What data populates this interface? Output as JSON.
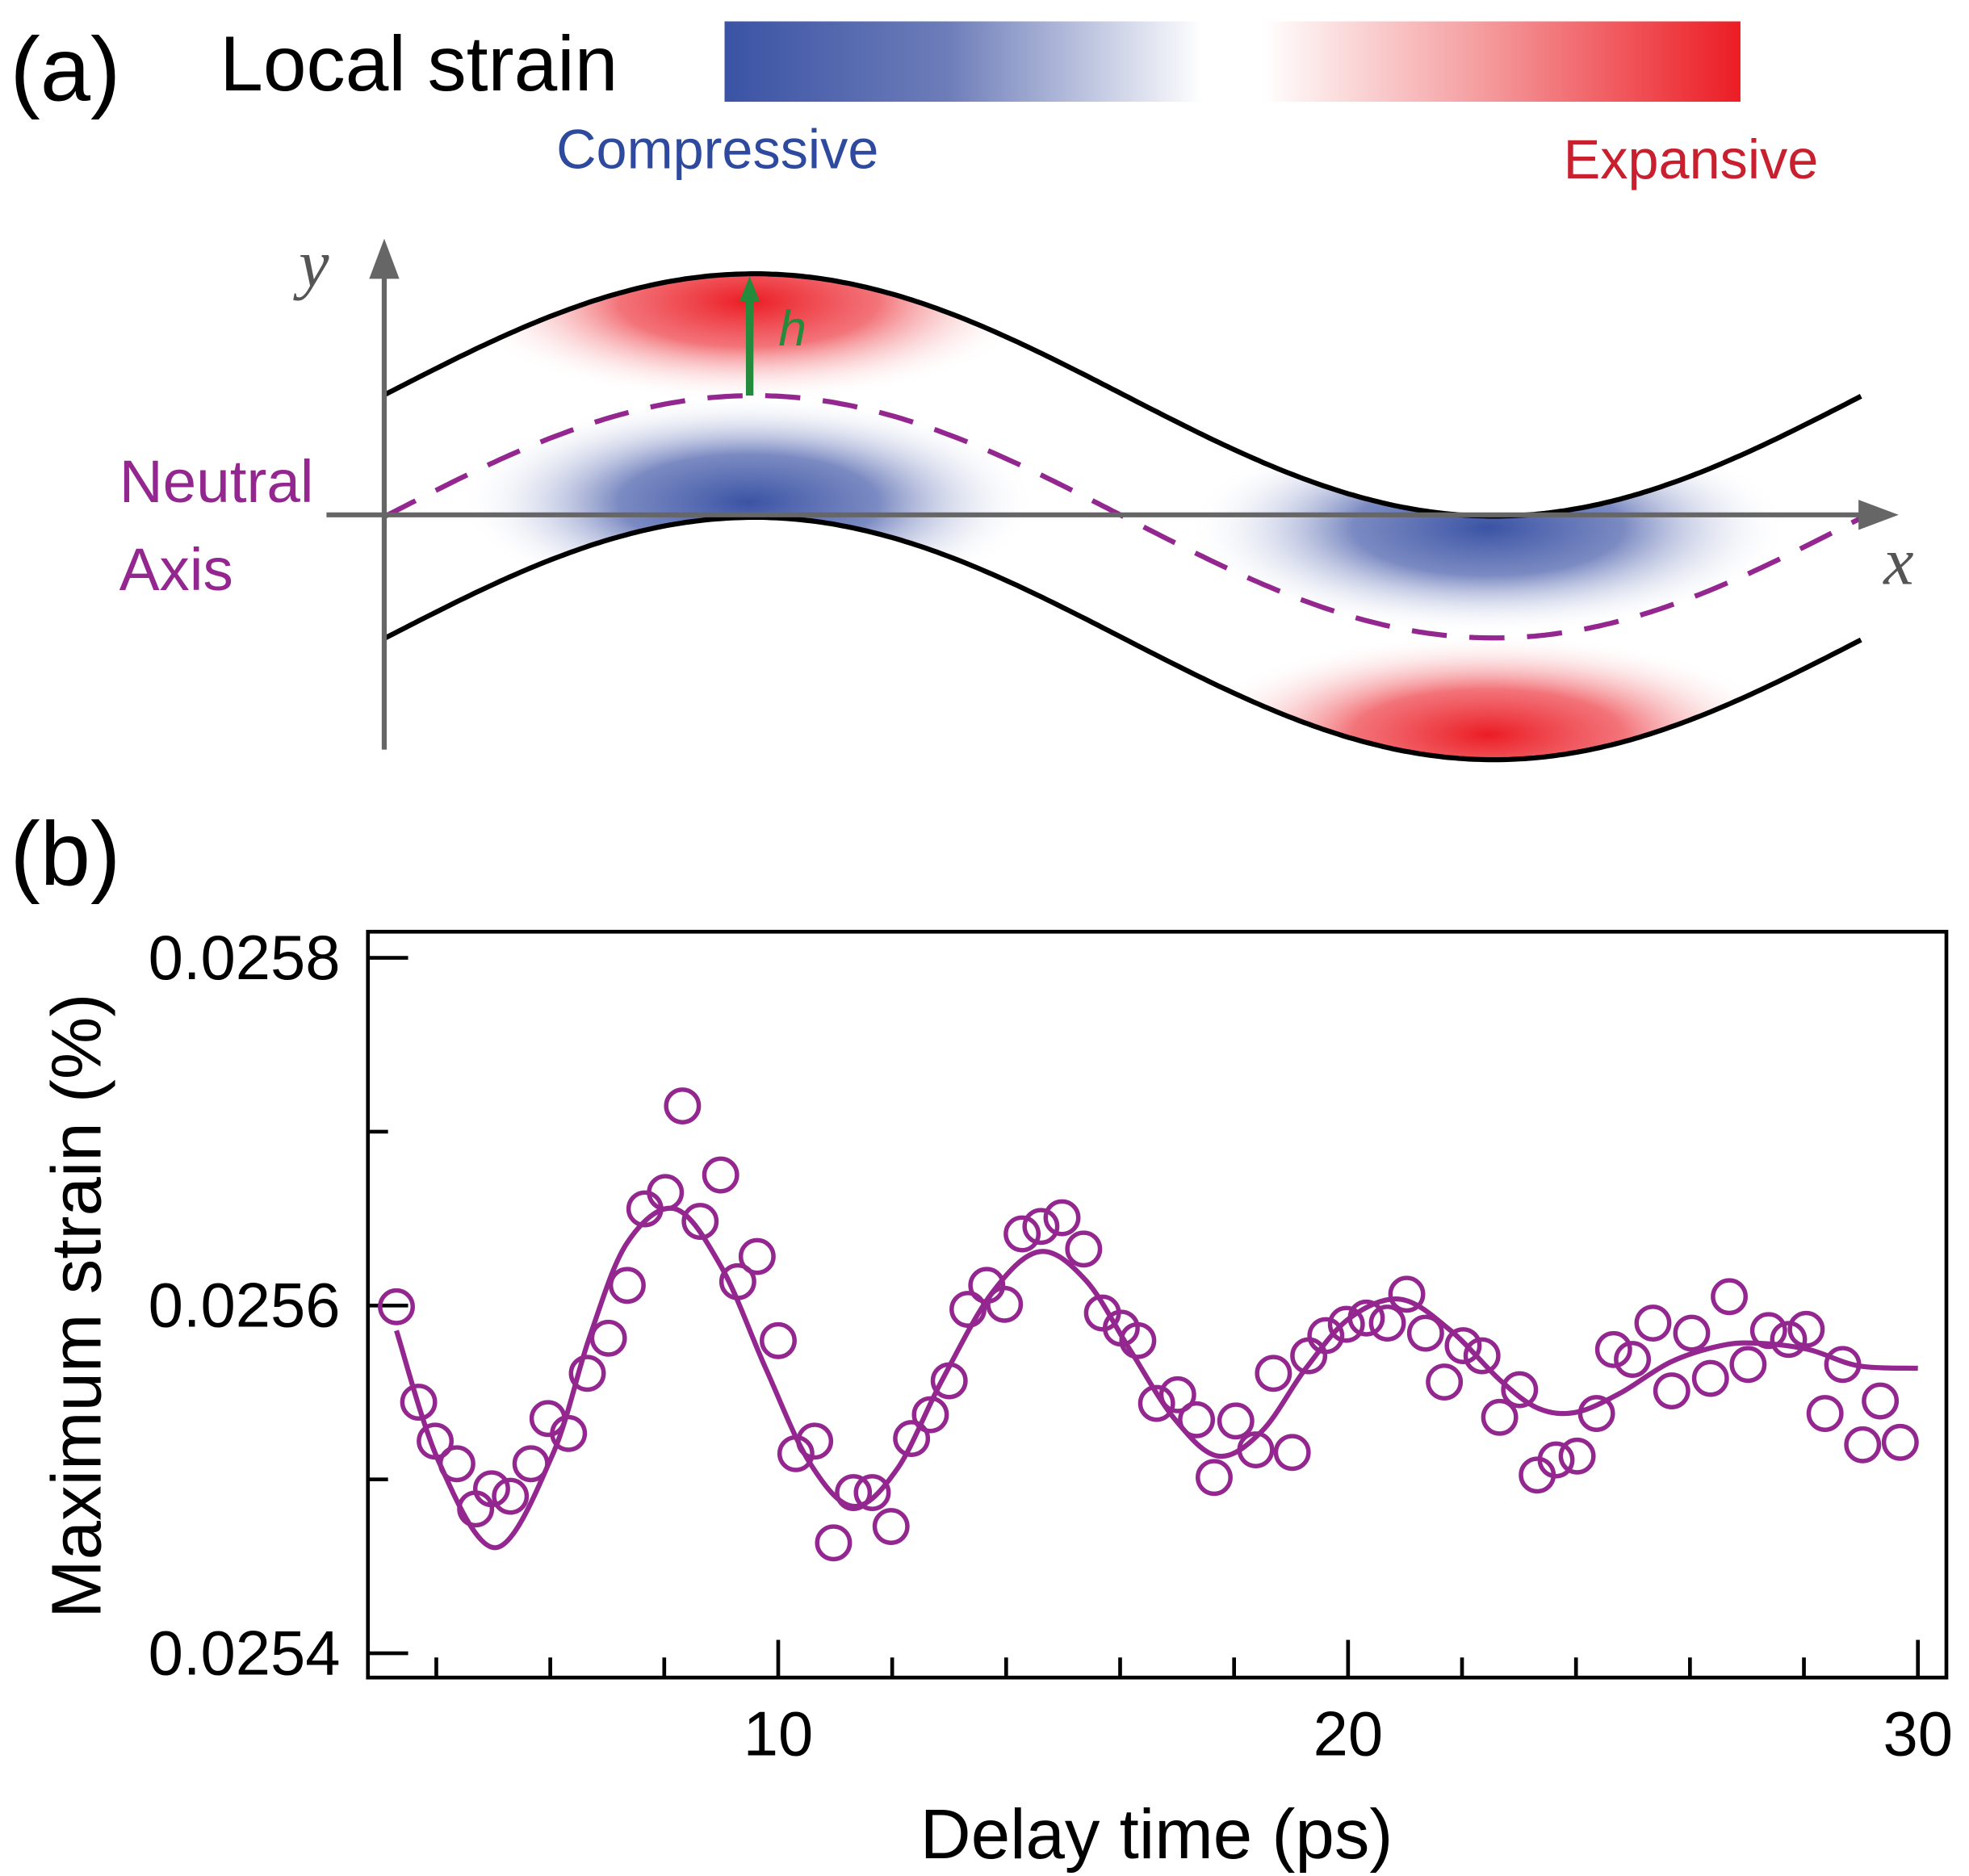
{
  "diagram": {
    "panel_label": "(a)",
    "colorbar_label": "Local strain",
    "low_label": "Compressive",
    "high_label": "Expansive",
    "y_axis": "y",
    "x_axis": "x",
    "thickness": "h",
    "neutral_axis": [
      "Neutral",
      "Axis"
    ]
  },
  "chart_data": {
    "type": "scatter",
    "panel_label": "(b)",
    "xlabel": "Delay time (ps)",
    "ylabel": "Maximum strain (%)",
    "xlim": [
      2.8,
      30.5
    ],
    "ylim": [
      0.025386,
      0.025815
    ],
    "xticks": [
      10,
      20,
      30
    ],
    "xminor_ticks": [
      4,
      6,
      8,
      12,
      14,
      16,
      18,
      22,
      24,
      26,
      28
    ],
    "yticks": [
      0.0254,
      0.0256,
      0.0258
    ],
    "yminor_ticks": [
      0.0255,
      0.0257
    ],
    "series": [
      {
        "type": "scatter",
        "color": "#93278f",
        "x": [
          3.3,
          3.69,
          3.98,
          4.36,
          4.69,
          4.97,
          5.3,
          5.66,
          5.96,
          6.32,
          6.65,
          7.02,
          7.35,
          7.66,
          8.02,
          8.32,
          8.63,
          8.99,
          9.29,
          9.63,
          10.0,
          10.31,
          10.64,
          10.97,
          11.32,
          11.65,
          11.98,
          12.34,
          12.67,
          13.0,
          13.33,
          13.66,
          13.97,
          14.28,
          14.61,
          14.98,
          15.36,
          15.69,
          16.02,
          16.31,
          16.64,
          17.01,
          17.34,
          17.65,
          18.03,
          18.38,
          18.69,
          19.02,
          19.31,
          19.61,
          19.97,
          20.32,
          20.69,
          21.03,
          21.36,
          21.69,
          22.02,
          22.35,
          22.66,
          23.01,
          23.32,
          23.65,
          24.02,
          24.36,
          24.66,
          24.99,
          25.35,
          25.68,
          26.03,
          26.36,
          26.69,
          27.02,
          27.38,
          27.73,
          28.04,
          28.37,
          28.68,
          29.03,
          29.34,
          29.69
        ],
        "values": [
          0.0255993,
          0.0255444,
          0.025522,
          0.025509,
          0.025483,
          0.0254946,
          0.0254903,
          0.025509,
          0.025535,
          0.0255264,
          0.025561,
          0.0255812,
          0.0256116,
          0.0256556,
          0.025665,
          0.0257148,
          0.0256484,
          0.0256751,
          0.0256137,
          0.0256282,
          0.0255798,
          0.0255148,
          0.025522,
          0.0254635,
          0.0254924,
          0.0254924,
          0.0254729,
          0.0255235,
          0.0255372,
          0.0255567,
          0.0255978,
          0.0256116,
          0.0256007,
          0.0256412,
          0.0256455,
          0.0256505,
          0.0256325,
          0.0255957,
          0.025587,
          0.0255798,
          0.0255437,
          0.0255487,
          0.0255343,
          0.0255011,
          0.0255336,
          0.025517,
          0.025561,
          0.0255155,
          0.0255711,
          0.0255827,
          0.0255892,
          0.0255928,
          0.0255899,
          0.0256065,
          0.0255841,
          0.025556,
          0.0255769,
          0.0255711,
          0.0255357,
          0.0255516,
          0.0255025,
          0.0255112,
          0.0255134,
          0.0255379,
          0.0255747,
          0.025569,
          0.0255899,
          0.0255509,
          0.0255841,
          0.0255581,
          0.0256051,
          0.0255661,
          0.0255856,
          0.0255805,
          0.0255863,
          0.0255379,
          0.0255661,
          0.0255199,
          0.0255451,
          0.0255213
        ]
      },
      {
        "type": "line",
        "color": "#93278f",
        "x": [
          3.3,
          4.05,
          5.04,
          6.03,
          6.69,
          7.35,
          8.19,
          9.01,
          9.78,
          10.55,
          11.32,
          12.09,
          12.87,
          13.75,
          14.59,
          15.4,
          16.17,
          16.95,
          17.72,
          18.49,
          19.26,
          20.03,
          20.92,
          21.8,
          22.68,
          23.34,
          24.0,
          24.77,
          25.66,
          26.54,
          27.2,
          28.08,
          28.96,
          30.0
        ],
        "values": [
          0.0255856,
          0.0255097,
          0.0254607,
          0.0255134,
          0.0255819,
          0.0256361,
          0.0256556,
          0.0256217,
          0.0255639,
          0.0255097,
          0.0254845,
          0.0255061,
          0.0255567,
          0.0256072,
          0.025631,
          0.0256144,
          0.0255747,
          0.025535,
          0.0255134,
          0.0255278,
          0.0255639,
          0.0255928,
          0.0256036,
          0.0255856,
          0.0255567,
          0.0255408,
          0.0255386,
          0.0255495,
          0.0255675,
          0.0255769,
          0.0255783,
          0.0255747,
          0.0255653,
          0.0255639
        ]
      }
    ]
  }
}
